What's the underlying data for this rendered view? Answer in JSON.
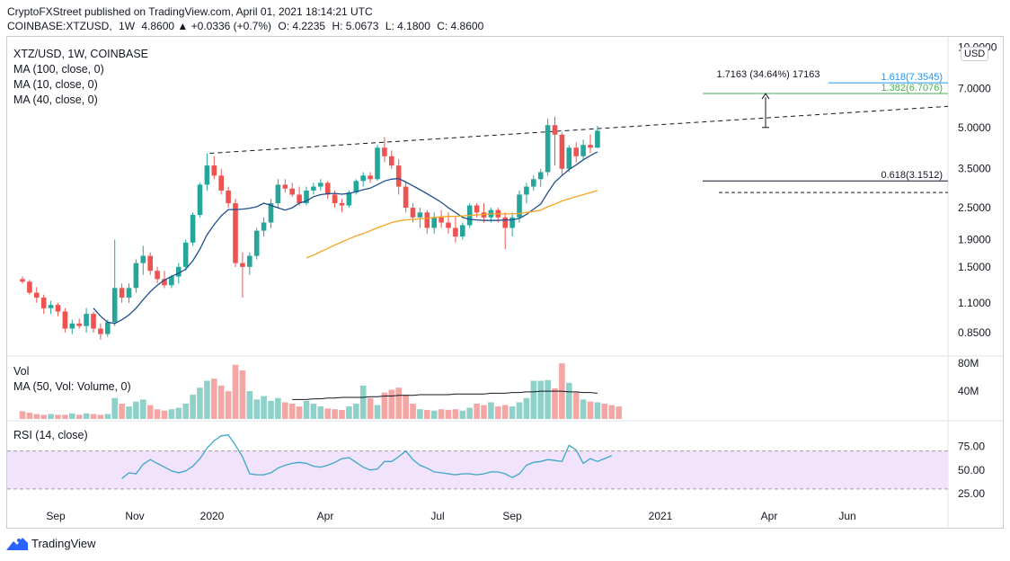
{
  "header": {
    "line1": "CryptoFXStreet published on TradingView.com, April 01, 2021 18:14:21 UTC",
    "symbol": "COINBASE:XTZUSD,",
    "period": "1W",
    "change": "4.8600 ▲ +0.0336 (+0.7%)",
    "o": "O: 4.2235",
    "h": "H: 5.0673",
    "l": "L: 4.1800",
    "c": "C: 4.8600"
  },
  "legend": {
    "title": "XTZ/USD, 1W, COINBASE",
    "ma100": "MA (100, close, 0)",
    "ma10": "MA (10, close, 0)",
    "ma40": "MA (40, close, 0)",
    "vol": "Vol",
    "vol_ma": "MA (50, Vol: Volume, 0)",
    "rsi": "RSI (14, close)"
  },
  "currency_badge": "USD",
  "footer": {
    "brand": "TradingView"
  },
  "chart_data": [
    {
      "type": "candlestick",
      "title": "XTZ/USD, 1W, COINBASE",
      "y_scale": "log",
      "y_ticks": [
        "10.0000",
        "7.0000",
        "5.0000",
        "3.5000",
        "2.5000",
        "1.9000",
        "1.5000",
        "1.1000",
        "0.8500"
      ],
      "y_tick_values": [
        10,
        7,
        5,
        3.5,
        2.5,
        1.9,
        1.5,
        1.1,
        0.85
      ],
      "x_ticks": [
        "Sep",
        "Nov",
        "2020",
        "Apr",
        "Jul",
        "Sep",
        "2021",
        "Apr",
        "Jun"
      ],
      "candles": [
        [
          1.35,
          1.38,
          1.3,
          1.32
        ],
        [
          1.32,
          1.34,
          1.18,
          1.2
        ],
        [
          1.2,
          1.26,
          1.1,
          1.15
        ],
        [
          1.15,
          1.18,
          1.0,
          1.05
        ],
        [
          1.05,
          1.12,
          1.0,
          1.08
        ],
        [
          1.08,
          1.1,
          0.98,
          1.02
        ],
        [
          1.02,
          1.05,
          0.85,
          0.88
        ],
        [
          0.88,
          0.95,
          0.84,
          0.92
        ],
        [
          0.92,
          0.96,
          0.88,
          0.9
        ],
        [
          0.9,
          1.05,
          0.85,
          1.0
        ],
        [
          1.0,
          1.02,
          0.85,
          0.88
        ],
        [
          0.88,
          0.92,
          0.8,
          0.84
        ],
        [
          0.84,
          0.95,
          0.82,
          0.93
        ],
        [
          0.93,
          1.9,
          0.9,
          1.25
        ],
        [
          1.25,
          1.3,
          1.1,
          1.15
        ],
        [
          1.15,
          1.3,
          1.1,
          1.25
        ],
        [
          1.25,
          1.6,
          1.2,
          1.55
        ],
        [
          1.55,
          1.8,
          1.4,
          1.65
        ],
        [
          1.65,
          1.7,
          1.4,
          1.45
        ],
        [
          1.45,
          1.5,
          1.3,
          1.35
        ],
        [
          1.35,
          1.45,
          1.25,
          1.28
        ],
        [
          1.28,
          1.4,
          1.25,
          1.38
        ],
        [
          1.38,
          1.55,
          1.3,
          1.5
        ],
        [
          1.5,
          1.9,
          1.45,
          1.85
        ],
        [
          1.85,
          2.4,
          1.8,
          2.35
        ],
        [
          2.35,
          3.1,
          2.3,
          3.05
        ],
        [
          3.05,
          4.0,
          2.9,
          3.6
        ],
        [
          3.6,
          3.9,
          3.2,
          3.3
        ],
        [
          3.3,
          3.5,
          2.8,
          2.9
        ],
        [
          2.9,
          3.0,
          2.5,
          2.6
        ],
        [
          2.6,
          2.7,
          1.5,
          1.55
        ],
        [
          1.55,
          1.7,
          1.15,
          1.5
        ],
        [
          1.5,
          1.7,
          1.4,
          1.65
        ],
        [
          1.65,
          2.1,
          1.6,
          2.05
        ],
        [
          2.05,
          2.3,
          1.95,
          2.2
        ],
        [
          2.2,
          2.7,
          2.1,
          2.6
        ],
        [
          2.6,
          3.2,
          2.5,
          3.05
        ],
        [
          3.05,
          3.2,
          2.85,
          2.95
        ],
        [
          2.95,
          3.1,
          2.75,
          2.8
        ],
        [
          2.8,
          3.0,
          2.55,
          2.6
        ],
        [
          2.6,
          3.0,
          2.55,
          2.9
        ],
        [
          2.9,
          3.1,
          2.8,
          3.0
        ],
        [
          3.0,
          3.2,
          2.9,
          3.1
        ],
        [
          3.1,
          3.15,
          2.7,
          2.8
        ],
        [
          2.8,
          2.9,
          2.5,
          2.6
        ],
        [
          2.6,
          2.7,
          2.4,
          2.55
        ],
        [
          2.55,
          2.9,
          2.5,
          2.85
        ],
        [
          2.85,
          3.2,
          2.8,
          3.15
        ],
        [
          3.15,
          3.4,
          3.0,
          3.3
        ],
        [
          3.3,
          3.4,
          3.1,
          3.2
        ],
        [
          3.2,
          4.3,
          3.15,
          4.2
        ],
        [
          4.2,
          4.6,
          3.7,
          3.9
        ],
        [
          3.9,
          4.1,
          3.5,
          3.6
        ],
        [
          3.6,
          3.8,
          2.8,
          3.0
        ],
        [
          3.0,
          3.1,
          2.4,
          2.5
        ],
        [
          2.5,
          2.6,
          2.2,
          2.3
        ],
        [
          2.3,
          2.5,
          2.1,
          2.4
        ],
        [
          2.4,
          2.45,
          2.0,
          2.1
        ],
        [
          2.1,
          2.4,
          2.0,
          2.3
        ],
        [
          2.3,
          2.45,
          2.1,
          2.2
        ],
        [
          2.2,
          2.4,
          2.0,
          2.1
        ],
        [
          2.1,
          2.3,
          1.85,
          1.95
        ],
        [
          1.95,
          2.2,
          1.9,
          2.15
        ],
        [
          2.15,
          2.6,
          2.1,
          2.55
        ],
        [
          2.55,
          2.6,
          2.3,
          2.4
        ],
        [
          2.4,
          2.6,
          2.2,
          2.3
        ],
        [
          2.3,
          2.5,
          2.2,
          2.45
        ],
        [
          2.45,
          2.5,
          2.2,
          2.3
        ],
        [
          2.3,
          2.4,
          1.75,
          2.1
        ],
        [
          2.1,
          2.4,
          1.95,
          2.3
        ],
        [
          2.3,
          2.9,
          2.2,
          2.8
        ],
        [
          2.8,
          3.1,
          2.6,
          3.0
        ],
        [
          3.0,
          3.3,
          2.9,
          3.2
        ],
        [
          3.2,
          3.5,
          3.0,
          3.4
        ],
        [
          3.4,
          5.4,
          3.3,
          5.1
        ],
        [
          5.1,
          5.5,
          3.6,
          4.7
        ],
        [
          4.7,
          4.8,
          3.3,
          3.5
        ],
        [
          3.5,
          4.3,
          3.4,
          4.2
        ],
        [
          4.2,
          4.4,
          3.7,
          3.9
        ],
        [
          3.9,
          4.5,
          3.8,
          4.3
        ],
        [
          4.3,
          4.7,
          4.0,
          4.2
        ],
        [
          4.2,
          5.07,
          4.18,
          4.86
        ]
      ],
      "ma10": [
        null,
        null,
        null,
        null,
        null,
        null,
        null,
        null,
        null,
        null,
        1.05,
        0.98,
        0.93,
        0.92,
        0.95,
        0.99,
        1.05,
        1.13,
        1.21,
        1.28,
        1.34,
        1.38,
        1.42,
        1.47,
        1.58,
        1.75,
        1.98,
        2.16,
        2.33,
        2.46,
        2.46,
        2.47,
        2.49,
        2.52,
        2.6,
        2.55,
        2.5,
        2.45,
        2.5,
        2.6,
        2.65,
        2.75,
        2.8,
        2.82,
        2.83,
        2.81,
        2.83,
        2.87,
        2.92,
        2.96,
        3.05,
        3.15,
        3.2,
        3.22,
        3.12,
        3.02,
        2.92,
        2.82,
        2.72,
        2.62,
        2.5,
        2.4,
        2.3,
        2.26,
        2.25,
        2.24,
        2.24,
        2.24,
        2.25,
        2.25,
        2.28,
        2.36,
        2.47,
        2.58,
        2.85,
        3.12,
        3.3,
        3.48,
        3.62,
        3.78,
        3.92,
        4.05
      ],
      "ma40": [
        null,
        null,
        null,
        null,
        null,
        null,
        null,
        null,
        null,
        null,
        null,
        null,
        null,
        null,
        null,
        null,
        null,
        null,
        null,
        null,
        null,
        null,
        null,
        null,
        null,
        null,
        null,
        null,
        null,
        null,
        null,
        null,
        null,
        null,
        null,
        null,
        null,
        null,
        null,
        null,
        1.62,
        1.66,
        1.71,
        1.76,
        1.81,
        1.86,
        1.91,
        1.96,
        2.0,
        2.05,
        2.1,
        2.15,
        2.2,
        2.23,
        2.25,
        2.26,
        2.27,
        2.28,
        2.3,
        2.31,
        2.32,
        2.32,
        2.33,
        2.34,
        2.35,
        2.36,
        2.37,
        2.37,
        2.37,
        2.37,
        2.38,
        2.4,
        2.42,
        2.45,
        2.52,
        2.58,
        2.65,
        2.7,
        2.75,
        2.8,
        2.85,
        2.9
      ],
      "trendline": {
        "start_index": 26,
        "start_value": 4.0,
        "end_index": 108,
        "end_value": 6.0,
        "style": "dashed"
      },
      "fib_levels": [
        {
          "label": "1.618(7.3545)",
          "value": 7.3545,
          "color": "#2196f3"
        },
        {
          "label": "1.382(6.7076)",
          "value": 6.7076,
          "color": "#4caf50"
        },
        {
          "label": "0.618(3.1512)",
          "value": 3.1512,
          "color": "#131722"
        }
      ],
      "support_line": {
        "value": 2.85,
        "style": "dashed"
      },
      "measurement": {
        "label": "1.7163 (34.64%) 17163",
        "from": 5.0,
        "to": 6.7
      }
    },
    {
      "type": "bar",
      "title": "Vol",
      "y_ticks": [
        "80M",
        "40M"
      ],
      "y_tick_values": [
        80,
        40
      ],
      "values_millions": [
        11,
        9,
        7,
        6,
        7,
        6,
        6,
        8,
        6,
        8,
        7,
        6,
        7,
        30,
        22,
        18,
        25,
        28,
        20,
        14,
        12,
        14,
        16,
        22,
        35,
        45,
        55,
        58,
        48,
        40,
        78,
        70,
        40,
        28,
        33,
        26,
        30,
        24,
        22,
        18,
        26,
        22,
        18,
        15,
        14,
        13,
        18,
        22,
        48,
        30,
        20,
        38,
        42,
        45,
        35,
        22,
        14,
        13,
        12,
        14,
        13,
        14,
        12,
        16,
        22,
        20,
        24,
        18,
        20,
        18,
        24,
        30,
        55,
        55,
        56,
        44,
        80,
        52,
        38,
        28,
        25,
        24,
        22,
        20,
        18
      ],
      "ma50_millions": [
        28,
        28,
        28,
        29,
        29,
        30,
        30,
        31,
        31,
        31,
        31,
        32,
        32,
        33,
        33,
        34,
        34,
        34,
        35,
        35,
        35,
        35,
        35,
        36,
        36,
        36,
        36,
        36,
        37,
        37,
        37,
        38,
        38,
        39,
        39,
        40,
        40,
        40,
        40,
        39,
        39,
        38,
        38,
        37
      ]
    },
    {
      "type": "line",
      "title": "RSI (14, close)",
      "y_ticks": [
        "75.00",
        "50.00",
        "25.00"
      ],
      "y_tick_values": [
        75,
        50,
        25
      ],
      "values": [
        null,
        null,
        null,
        null,
        null,
        null,
        null,
        null,
        null,
        null,
        null,
        null,
        null,
        null,
        41,
        47,
        46,
        56,
        61,
        57,
        53,
        49,
        47,
        49,
        54,
        62,
        73,
        81,
        86,
        87,
        76,
        64,
        46,
        45,
        45,
        47,
        52,
        55,
        57,
        58,
        57,
        54,
        53,
        55,
        58,
        62,
        63,
        58,
        53,
        50,
        51,
        59,
        59,
        64,
        70,
        61,
        55,
        52,
        48,
        47,
        46,
        45,
        46,
        46,
        45,
        46,
        48,
        48,
        46,
        42,
        46,
        55,
        58,
        59,
        61,
        60,
        59,
        76,
        71,
        57,
        62,
        59,
        62,
        65
      ],
      "band": [
        30,
        70
      ]
    }
  ]
}
